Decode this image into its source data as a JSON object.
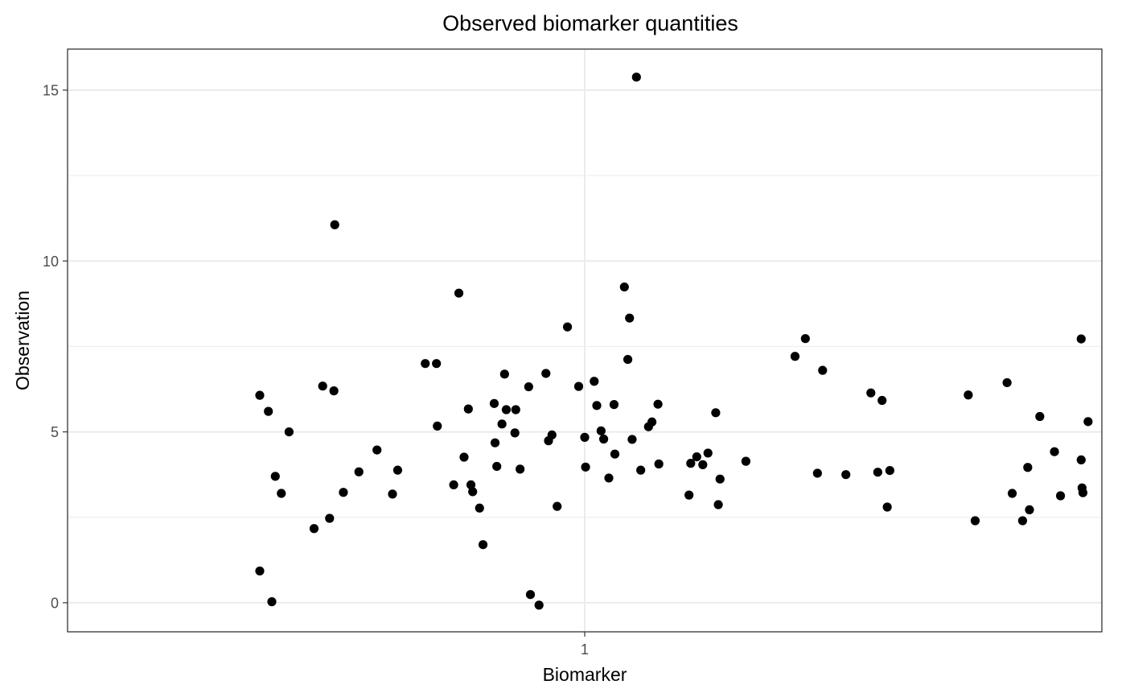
{
  "chart_data": {
    "type": "scatter",
    "title": "Observed biomarker quantities",
    "xlabel": "Biomarker",
    "ylabel": "Observation",
    "categories": [
      "1"
    ],
    "xlim": [
      0.4,
      1.6
    ],
    "ylim": [
      -0.85,
      16.2
    ],
    "y_ticks": [
      0,
      5,
      10,
      15
    ],
    "y_tick_labels": [
      "0",
      "5",
      "10",
      "15"
    ],
    "x_tick_labels": [
      "1"
    ],
    "grid": true,
    "legend": "none",
    "point_color": "#000000",
    "series": [
      {
        "points": [
          {
            "x": 0.623,
            "y": 6.07
          },
          {
            "x": 0.623,
            "y": 0.93
          },
          {
            "x": 0.633,
            "y": 5.6
          },
          {
            "x": 0.637,
            "y": 0.03
          },
          {
            "x": 0.641,
            "y": 3.7
          },
          {
            "x": 0.648,
            "y": 3.2
          },
          {
            "x": 0.657,
            "y": 5.0
          },
          {
            "x": 0.686,
            "y": 2.17
          },
          {
            "x": 0.696,
            "y": 6.34
          },
          {
            "x": 0.704,
            "y": 2.47
          },
          {
            "x": 0.709,
            "y": 6.2
          },
          {
            "x": 0.71,
            "y": 11.06
          },
          {
            "x": 0.72,
            "y": 3.23
          },
          {
            "x": 0.738,
            "y": 3.83
          },
          {
            "x": 0.759,
            "y": 4.47
          },
          {
            "x": 0.777,
            "y": 3.18
          },
          {
            "x": 0.783,
            "y": 3.88
          },
          {
            "x": 0.815,
            "y": 7.0
          },
          {
            "x": 0.828,
            "y": 7.0
          },
          {
            "x": 0.829,
            "y": 5.17
          },
          {
            "x": 0.848,
            "y": 3.45
          },
          {
            "x": 0.854,
            "y": 9.06
          },
          {
            "x": 0.86,
            "y": 4.26
          },
          {
            "x": 0.865,
            "y": 5.67
          },
          {
            "x": 0.868,
            "y": 3.45
          },
          {
            "x": 0.87,
            "y": 3.25
          },
          {
            "x": 0.878,
            "y": 2.77
          },
          {
            "x": 0.882,
            "y": 1.7
          },
          {
            "x": 0.895,
            "y": 5.83
          },
          {
            "x": 0.896,
            "y": 4.68
          },
          {
            "x": 0.898,
            "y": 3.99
          },
          {
            "x": 0.904,
            "y": 5.23
          },
          {
            "x": 0.907,
            "y": 6.69
          },
          {
            "x": 0.909,
            "y": 5.65
          },
          {
            "x": 0.919,
            "y": 4.97
          },
          {
            "x": 0.92,
            "y": 5.65
          },
          {
            "x": 0.925,
            "y": 3.91
          },
          {
            "x": 0.935,
            "y": 6.32
          },
          {
            "x": 0.937,
            "y": 0.24
          },
          {
            "x": 0.947,
            "y": -0.07
          },
          {
            "x": 0.955,
            "y": 6.71
          },
          {
            "x": 0.958,
            "y": 4.74
          },
          {
            "x": 0.962,
            "y": 4.91
          },
          {
            "x": 0.968,
            "y": 2.82
          },
          {
            "x": 0.98,
            "y": 8.07
          },
          {
            "x": 0.993,
            "y": 6.33
          },
          {
            "x": 1.0,
            "y": 4.84
          },
          {
            "x": 1.001,
            "y": 3.97
          },
          {
            "x": 1.011,
            "y": 6.48
          },
          {
            "x": 1.014,
            "y": 5.77
          },
          {
            "x": 1.019,
            "y": 5.03
          },
          {
            "x": 1.022,
            "y": 4.79
          },
          {
            "x": 1.028,
            "y": 3.65
          },
          {
            "x": 1.034,
            "y": 5.8
          },
          {
            "x": 1.035,
            "y": 4.35
          },
          {
            "x": 1.046,
            "y": 9.24
          },
          {
            "x": 1.05,
            "y": 7.12
          },
          {
            "x": 1.052,
            "y": 8.33
          },
          {
            "x": 1.055,
            "y": 4.78
          },
          {
            "x": 1.06,
            "y": 15.38
          },
          {
            "x": 1.065,
            "y": 3.88
          },
          {
            "x": 1.074,
            "y": 5.15
          },
          {
            "x": 1.078,
            "y": 5.29
          },
          {
            "x": 1.085,
            "y": 5.81
          },
          {
            "x": 1.086,
            "y": 4.06
          },
          {
            "x": 1.121,
            "y": 3.15
          },
          {
            "x": 1.123,
            "y": 4.08
          },
          {
            "x": 1.13,
            "y": 4.27
          },
          {
            "x": 1.137,
            "y": 4.04
          },
          {
            "x": 1.143,
            "y": 4.38
          },
          {
            "x": 1.152,
            "y": 5.56
          },
          {
            "x": 1.155,
            "y": 2.87
          },
          {
            "x": 1.157,
            "y": 3.62
          },
          {
            "x": 1.187,
            "y": 4.14
          },
          {
            "x": 1.244,
            "y": 7.21
          },
          {
            "x": 1.256,
            "y": 7.73
          },
          {
            "x": 1.27,
            "y": 3.79
          },
          {
            "x": 1.276,
            "y": 6.8
          },
          {
            "x": 1.303,
            "y": 3.75
          },
          {
            "x": 1.332,
            "y": 6.14
          },
          {
            "x": 1.34,
            "y": 3.82
          },
          {
            "x": 1.345,
            "y": 5.92
          },
          {
            "x": 1.351,
            "y": 2.8
          },
          {
            "x": 1.354,
            "y": 3.87
          },
          {
            "x": 1.445,
            "y": 6.08
          },
          {
            "x": 1.453,
            "y": 2.4
          },
          {
            "x": 1.49,
            "y": 6.44
          },
          {
            "x": 1.496,
            "y": 3.2
          },
          {
            "x": 1.508,
            "y": 2.4
          },
          {
            "x": 1.514,
            "y": 3.96
          },
          {
            "x": 1.516,
            "y": 2.72
          },
          {
            "x": 1.528,
            "y": 5.45
          },
          {
            "x": 1.545,
            "y": 4.42
          },
          {
            "x": 1.552,
            "y": 3.13
          },
          {
            "x": 1.576,
            "y": 7.72
          },
          {
            "x": 1.576,
            "y": 4.18
          },
          {
            "x": 1.577,
            "y": 3.36
          },
          {
            "x": 1.578,
            "y": 3.22
          },
          {
            "x": 1.584,
            "y": 5.3
          }
        ]
      }
    ]
  }
}
